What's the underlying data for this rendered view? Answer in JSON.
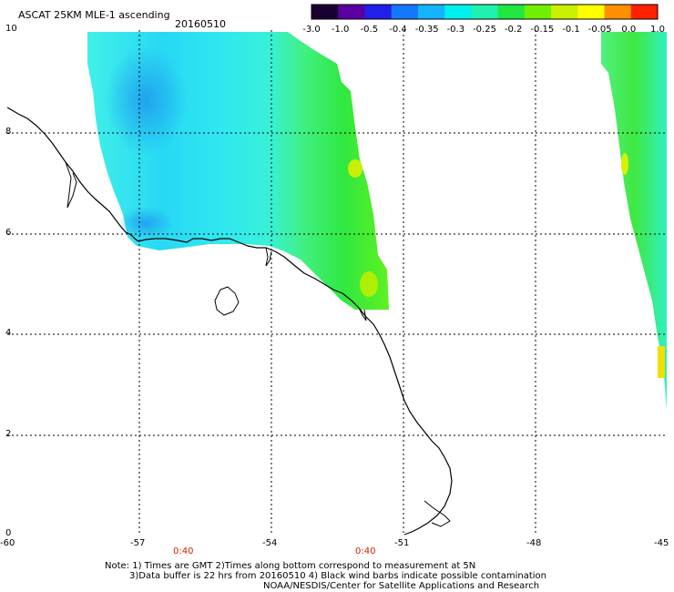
{
  "title": "ASCAT 25KM MLE-1 ascending",
  "date": "20160510",
  "colorbar": {
    "labels": [
      "-3.0",
      "-1.0",
      "-0.5",
      "-0.4",
      "-0.35",
      "-0.3",
      "-0.25",
      "-0.2",
      "-0.15",
      "-0.1",
      "-0.05",
      "0.0",
      "1.0"
    ],
    "colors": [
      "#1a0030",
      "#5a00a0",
      "#2020e8",
      "#1478ff",
      "#14b4ff",
      "#00f0f0",
      "#20f0b0",
      "#20e840",
      "#70f000",
      "#c8f000",
      "#ffff00",
      "#ff9000",
      "#ff2000"
    ]
  },
  "axes": {
    "lat_labels": [
      "10",
      "8",
      "6",
      "4",
      "2",
      "0"
    ],
    "lon_labels": [
      "-60",
      "-57",
      "-54",
      "-51",
      "-48",
      "-45"
    ]
  },
  "time_labels": [
    "0:40",
    "0:40"
  ],
  "notes": [
    "Note: 1) Times are GMT 2)Times along bottom correspond to measurement at 5N",
    "3)Data buffer is 22 hrs from 20160510 4) Black wind barbs indicate possible contamination",
    "NOAA/NESDIS/Center for Satellite Applications and Research"
  ]
}
